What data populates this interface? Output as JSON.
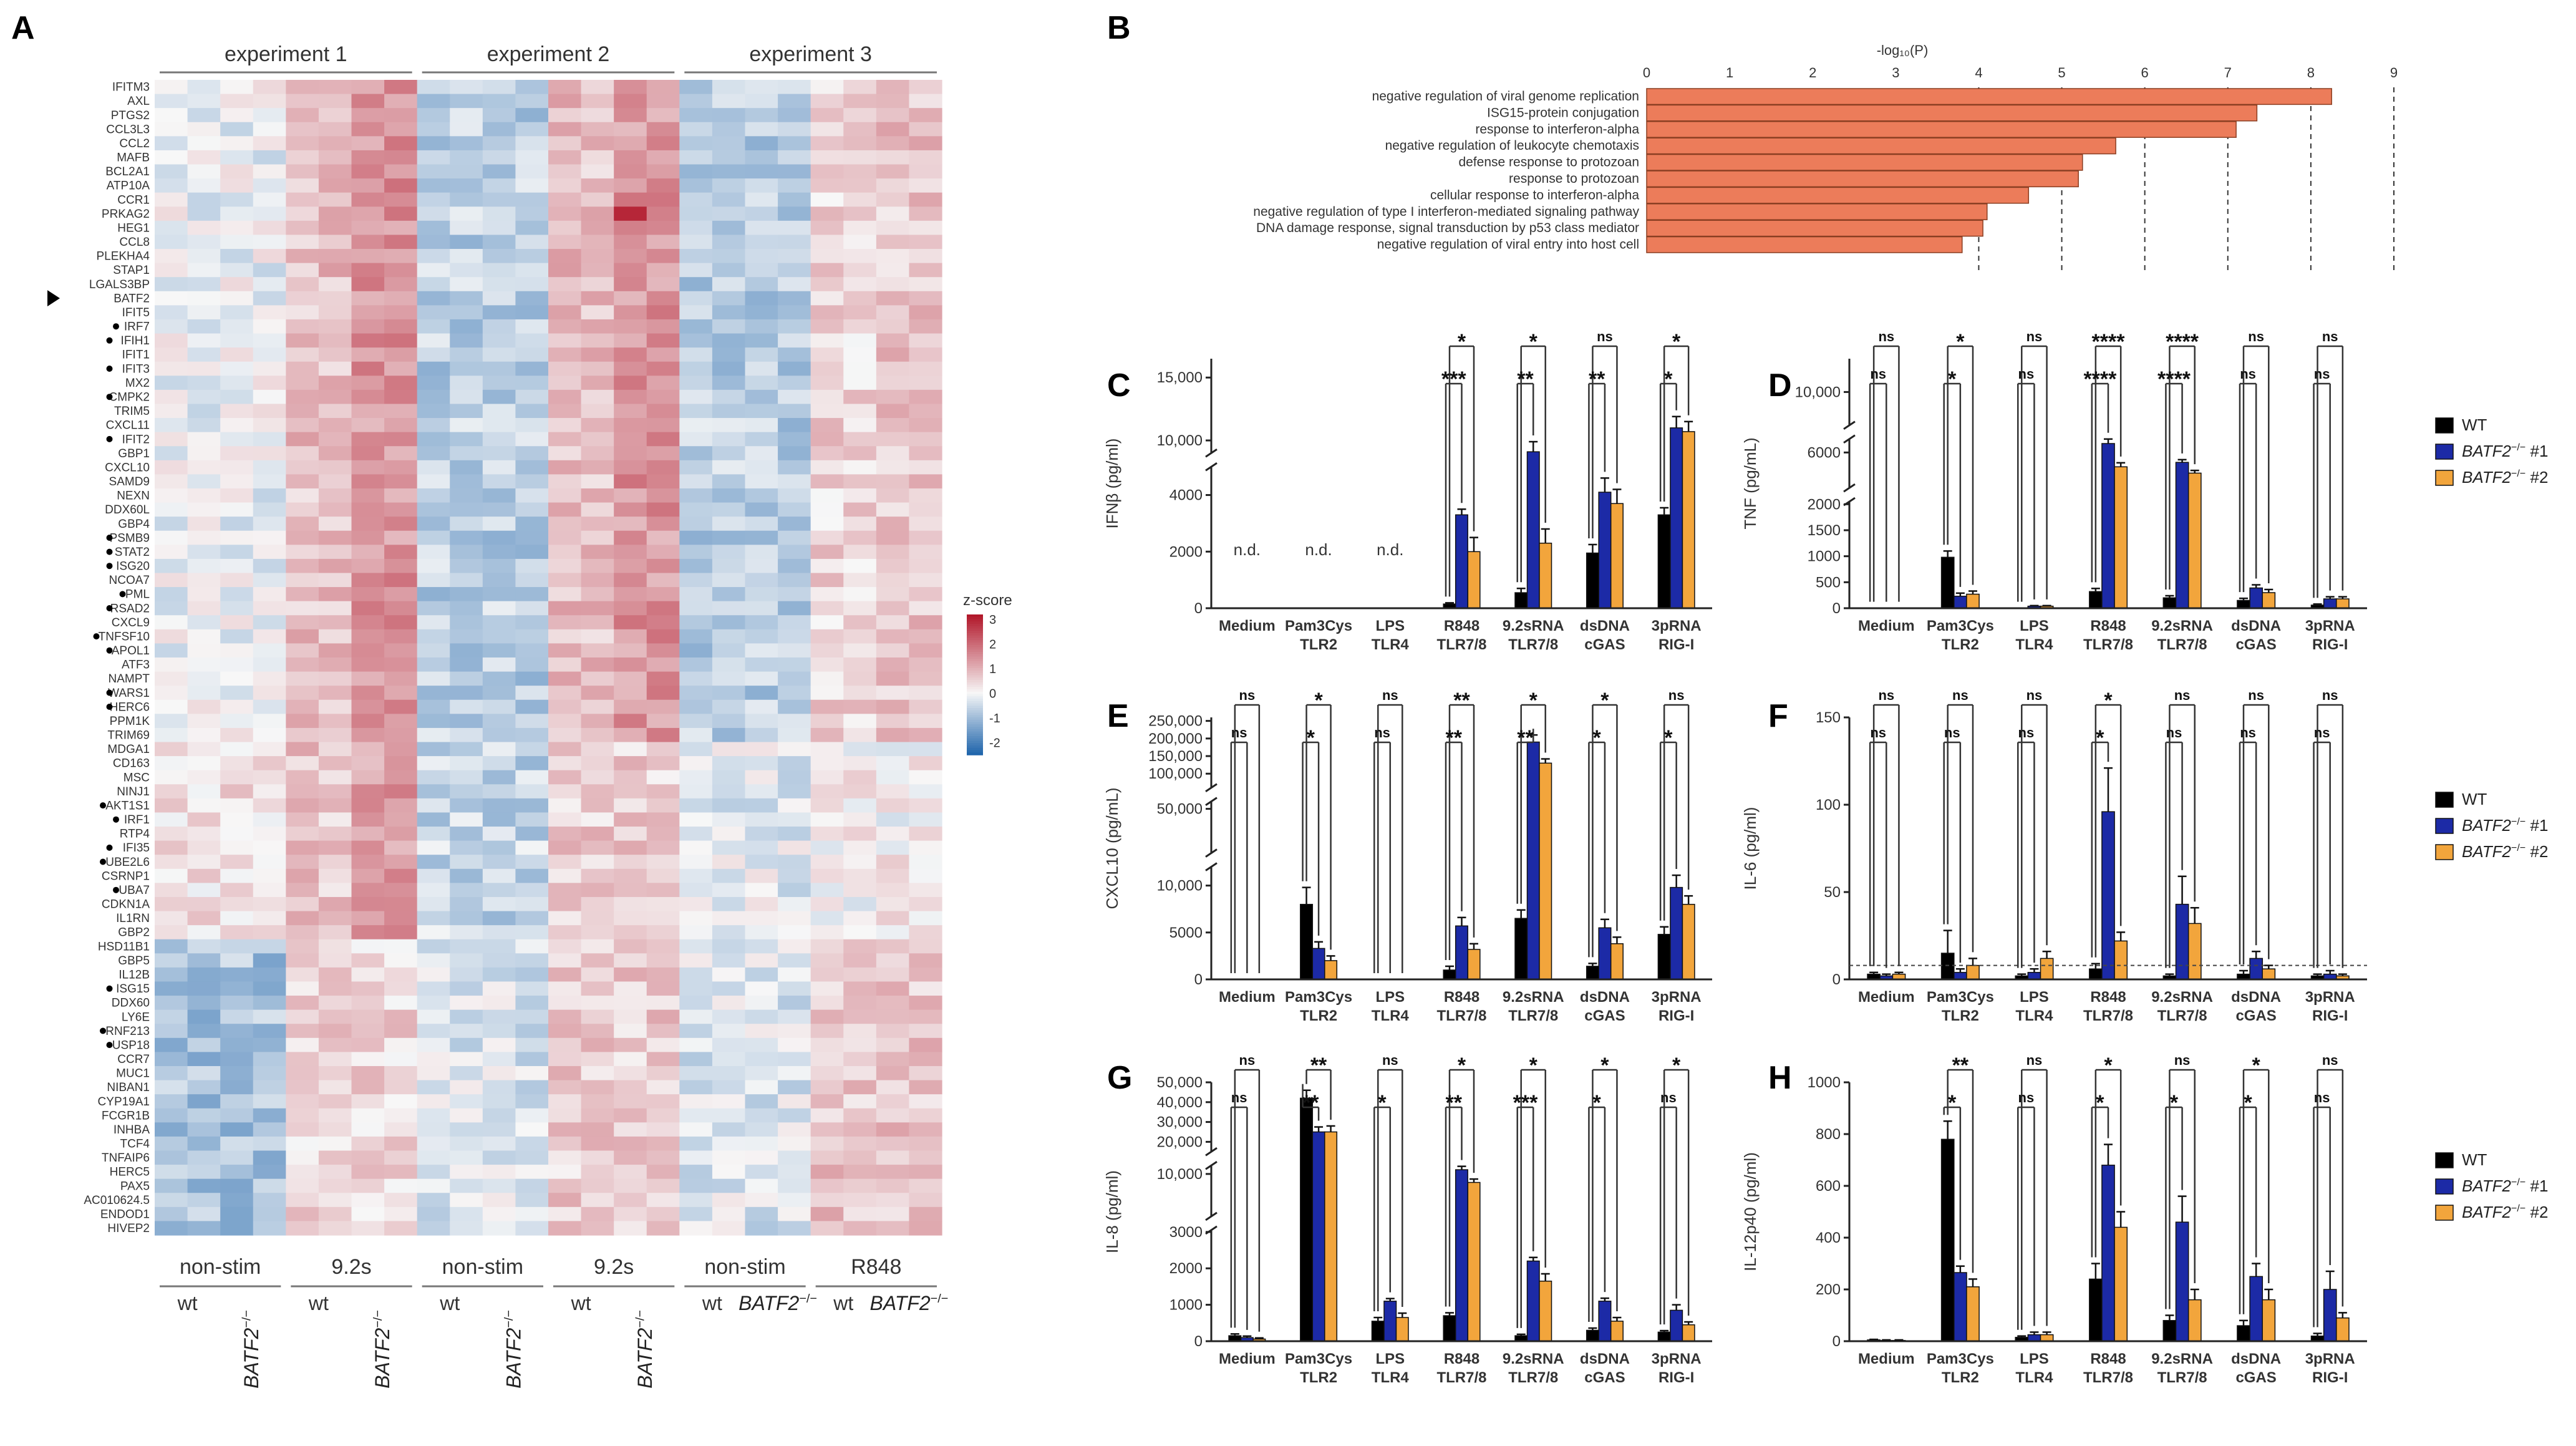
{
  "colors": {
    "wt": "#000000",
    "ko1": "#1c2aa6",
    "ko2": "#f2a53c",
    "go_bar": "#ec7c5a",
    "heat_low": "#2166ac",
    "heat_mid": "#f7f7f7",
    "heat_high": "#b2182b"
  },
  "chart_data": [
    {
      "panel": "A",
      "type": "heatmap",
      "experiments": [
        "experiment 1",
        "experiment 2",
        "experiment 3"
      ],
      "conditions": [
        {
          "stim": "non-stim",
          "genotypes": [
            "wt",
            "BATF2⁻/⁻"
          ]
        },
        {
          "stim": "9.2s",
          "genotypes": [
            "wt",
            "BATF2⁻/⁻"
          ]
        },
        {
          "stim": "non-stim",
          "genotypes": [
            "wt",
            "BATF2⁻/⁻"
          ]
        },
        {
          "stim": "9.2s",
          "genotypes": [
            "wt",
            "BATF2⁻/⁻"
          ]
        },
        {
          "stim": "non-stim",
          "genotypes": [
            "wt",
            "BATF2⁻/⁻"
          ]
        },
        {
          "stim": "R848",
          "genotypes": [
            "wt",
            "BATF2⁻/⁻"
          ]
        }
      ],
      "genes": [
        "IFITM3",
        "AXL",
        "PTGS2",
        "CCL3L3",
        "CCL2",
        "MAFB",
        "BCL2A1",
        "ATP10A",
        "CCR1",
        "PRKAG2",
        "HEG1",
        "CCL8",
        "PLEKHA4",
        "STAP1",
        "LGALS3BP",
        "BATF2",
        "IFIT5",
        "IRF7",
        "IFIH1",
        "IFIT1",
        "IFIT3",
        "MX2",
        "CMPK2",
        "TRIM5",
        "CXCL11",
        "IFIT2",
        "GBP1",
        "CXCL10",
        "SAMD9",
        "NEXN",
        "DDX60L",
        "GBP4",
        "PSMB9",
        "STAT2",
        "ISG20",
        "NCOA7",
        "PML",
        "RSAD2",
        "CXCL9",
        "TNFSF10",
        "APOL1",
        "ATF3",
        "NAMPT",
        "WARS1",
        "HERC6",
        "PPM1K",
        "TRIM69",
        "MDGA1",
        "CD163",
        "MSC",
        "NINJ1",
        "AKT1S1",
        "IRF1",
        "RTP4",
        "IFI35",
        "UBE2L6",
        "CSRNP1",
        "UBA7",
        "CDKN1A",
        "IL1RN",
        "GBP2",
        "HSD11B1",
        "GBP5",
        "IL12B",
        "ISG15",
        "DDX60",
        "LY6E",
        "RNF213",
        "USP18",
        "CCR7",
        "MUC1",
        "NIBAN1",
        "CYP19A1",
        "FCGR1B",
        "INHBA",
        "TCF4",
        "TNFAIP6",
        "HERC5",
        "PAX5",
        "AC010624.5",
        "ENDOD1",
        "HIVEP2"
      ],
      "dotted_genes": [
        "IRF7",
        "IFIH1",
        "IFIT3",
        "CMPK2",
        "IFIT2",
        "PSMB9",
        "STAT2",
        "ISG20",
        "PML",
        "RSAD2",
        "TNFSF10",
        "APOL1",
        "WARS1",
        "HERC6",
        "AKT1S1",
        "IRF1",
        "IFI35",
        "UBE2L6",
        "UBA7",
        "ISG15",
        "RNF213",
        "USP18"
      ],
      "arrow_gene": "BATF2",
      "scale": {
        "title": "z-score",
        "ticks": [
          3,
          2,
          1,
          0,
          -1,
          -2
        ],
        "tick_labels": [
          "3",
          "2",
          "1",
          "0",
          "-1",
          "-2"
        ],
        "range": [
          -2.5,
          3.2
        ]
      }
    },
    {
      "panel": "B",
      "type": "bar",
      "orientation": "horizontal",
      "xlabel": "-log₁₀(P)",
      "xticks": [
        0,
        1,
        2,
        3,
        4,
        5,
        6,
        7,
        8,
        9
      ],
      "xlim": [
        0,
        9
      ],
      "refs": [
        4,
        5,
        6,
        7,
        8,
        9
      ],
      "categories": [
        "negative regulation of viral genome replication",
        "ISG15-protein conjugation",
        "response to interferon-alpha",
        "negative regulation of leukocyte chemotaxis",
        "defense response to protozoan",
        "response to protozoan",
        "cellular response to interferon-alpha",
        "negative regulation of type I interferon-mediated signaling pathway",
        "DNA damage response, signal transduction by p53 class mediator",
        "negative regulation of viral entry into host cell"
      ],
      "values": [
        8.25,
        7.35,
        7.1,
        5.65,
        5.25,
        5.2,
        4.6,
        4.1,
        4.05,
        3.8
      ]
    },
    {
      "panel": "C",
      "type": "bar",
      "ylabel": "IFNβ (pg/ml)",
      "segments": [
        {
          "range": [
            0,
            5000
          ],
          "ticks": [
            0,
            2000,
            4000
          ],
          "tick_labels": [
            "0",
            "2000",
            "4000"
          ]
        },
        {
          "range": [
            9000,
            16500
          ],
          "ticks": [
            10000,
            15000
          ],
          "tick_labels": [
            "10,000",
            "15,000"
          ]
        }
      ],
      "categories": [
        "Medium",
        "Pam3Cys",
        "LPS",
        "R848",
        "9.2sRNA",
        "dsDNA",
        "3pRNA"
      ],
      "sublabels": [
        "",
        "TLR2",
        "TLR4",
        "TLR7/8",
        "TLR7/8",
        "cGAS",
        "RIG-I"
      ],
      "nd_labels": [
        "n.d.",
        "n.d.",
        "n.d."
      ],
      "series": [
        {
          "name": "WT",
          "values": [
            0,
            0,
            0,
            150,
            550,
            1950,
            3300
          ],
          "errors": [
            0,
            0,
            0,
            40,
            150,
            300,
            250
          ]
        },
        {
          "name": "BATF2⁻/⁻ #1",
          "values": [
            0,
            0,
            0,
            3300,
            9100,
            4100,
            11000
          ],
          "errors": [
            0,
            0,
            0,
            200,
            800,
            500,
            900
          ]
        },
        {
          "name": "BATF2⁻/⁻ #2",
          "values": [
            0,
            0,
            0,
            2000,
            2300,
            3700,
            10700
          ],
          "errors": [
            0,
            0,
            0,
            500,
            500,
            500,
            800
          ]
        }
      ],
      "sig_outer": [
        "",
        "",
        "",
        "*",
        "*",
        "ns",
        "*"
      ],
      "sig_inner": [
        "",
        "",
        "",
        "***",
        "**",
        "**",
        "*"
      ]
    },
    {
      "panel": "D",
      "type": "bar",
      "ylabel": "TNF (pg/mL)",
      "segments": [
        {
          "range": [
            0,
            2050
          ],
          "ticks": [
            0,
            500,
            1000,
            1500,
            2000
          ],
          "tick_labels": [
            "0",
            "500",
            "1000",
            "1500",
            "2000"
          ]
        },
        {
          "range": [
            2050,
            7500
          ],
          "ticks": [
            6000
          ],
          "tick_labels": [
            "6000"
          ]
        },
        {
          "range": [
            9000,
            11000
          ],
          "ticks": [
            10000
          ],
          "tick_labels": [
            "10,000"
          ]
        }
      ],
      "categories": [
        "Medium",
        "Pam3Cys",
        "LPS",
        "R848",
        "9.2sRNA",
        "dsDNA",
        "3pRNA"
      ],
      "sublabels": [
        "",
        "TLR2",
        "TLR4",
        "TLR7/8",
        "TLR7/8",
        "cGAS",
        "RIG-I"
      ],
      "series": [
        {
          "name": "WT",
          "values": [
            5,
            980,
            5,
            320,
            200,
            150,
            60
          ],
          "errors": [
            0,
            120,
            0,
            60,
            40,
            40,
            20
          ]
        },
        {
          "name": "BATF2⁻/⁻ #1",
          "values": [
            5,
            230,
            40,
            7000,
            4900,
            390,
            180
          ],
          "errors": [
            0,
            60,
            10,
            600,
            300,
            60,
            40
          ]
        },
        {
          "name": "BATF2⁻/⁻ #2",
          "values": [
            5,
            270,
            40,
            4400,
            3700,
            300,
            180
          ],
          "errors": [
            0,
            60,
            10,
            450,
            300,
            60,
            40
          ]
        }
      ],
      "sig_outer": [
        "ns",
        "*",
        "ns",
        "****",
        "****",
        "ns",
        "ns"
      ],
      "sig_inner": [
        "ns",
        "*",
        "ns",
        "****",
        "****",
        "ns",
        "ns"
      ]
    },
    {
      "panel": "E",
      "type": "bar",
      "ylabel": "CXCL10 (pg/mL)",
      "segments": [
        {
          "range": [
            0,
            12000
          ],
          "ticks": [
            0,
            5000,
            10000
          ],
          "tick_labels": [
            "0",
            "5000",
            "10,000"
          ]
        },
        {
          "range": [
            20000,
            55000
          ],
          "ticks": [
            50000
          ],
          "tick_labels": [
            "50,000"
          ]
        },
        {
          "range": [
            60000,
            260000
          ],
          "ticks": [
            100000,
            150000,
            200000,
            250000
          ],
          "tick_labels": [
            "100,000",
            "150,000",
            "200,000",
            "250,000"
          ]
        }
      ],
      "categories": [
        "Medium",
        "Pam3Cys",
        "LPS",
        "R848",
        "9.2sRNA",
        "dsDNA",
        "3pRNA"
      ],
      "sublabels": [
        "",
        "TLR2",
        "TLR4",
        "TLR7/8",
        "TLR7/8",
        "cGAS",
        "RIG-I"
      ],
      "series": [
        {
          "name": "WT",
          "values": [
            0,
            8000,
            0,
            1000,
            6500,
            1400,
            4800
          ],
          "errors": [
            0,
            1800,
            0,
            400,
            900,
            300,
            800
          ]
        },
        {
          "name": "BATF2⁻/⁻ #1",
          "values": [
            0,
            3300,
            0,
            5700,
            190000,
            5500,
            9800
          ],
          "errors": [
            0,
            700,
            0,
            900,
            20000,
            900,
            1300
          ]
        },
        {
          "name": "BATF2⁻/⁻ #2",
          "values": [
            0,
            2000,
            0,
            3200,
            130000,
            3800,
            8000
          ],
          "errors": [
            0,
            500,
            0,
            600,
            12000,
            700,
            900
          ]
        }
      ],
      "sig_outer": [
        "ns",
        "*",
        "ns",
        "**",
        "*",
        "*",
        "ns"
      ],
      "sig_inner": [
        "ns",
        "*",
        "ns",
        "**",
        "**",
        "*",
        "*"
      ]
    },
    {
      "panel": "F",
      "type": "bar",
      "ylabel": "IL-6 (pg/ml)",
      "segments": [
        {
          "range": [
            0,
            150
          ],
          "ticks": [
            0,
            50,
            100,
            150
          ],
          "tick_labels": [
            "0",
            "50",
            "100",
            "150"
          ]
        }
      ],
      "threshold": 8,
      "categories": [
        "Medium",
        "Pam3Cys",
        "LPS",
        "R848",
        "9.2sRNA",
        "dsDNA",
        "3pRNA"
      ],
      "sublabels": [
        "",
        "TLR2",
        "TLR4",
        "TLR7/8",
        "TLR7/8",
        "cGAS",
        "RIG-I"
      ],
      "series": [
        {
          "name": "WT",
          "values": [
            3,
            15,
            2,
            6,
            2,
            3,
            2
          ],
          "errors": [
            1,
            13,
            1,
            3,
            1,
            2,
            1
          ]
        },
        {
          "name": "BATF2⁻/⁻ #1",
          "values": [
            2,
            4,
            4,
            96,
            43,
            12,
            3
          ],
          "errors": [
            1,
            2,
            2,
            25,
            16,
            4,
            2
          ]
        },
        {
          "name": "BATF2⁻/⁻ #2",
          "values": [
            3,
            8,
            12,
            22,
            32,
            6,
            2
          ],
          "errors": [
            1,
            4,
            4,
            5,
            9,
            2,
            1
          ]
        }
      ],
      "sig_outer": [
        "ns",
        "ns",
        "ns",
        "*",
        "ns",
        "ns",
        "ns"
      ],
      "sig_inner": [
        "ns",
        "ns",
        "ns",
        "*",
        "ns",
        "ns",
        "ns"
      ],
      "legend": [
        "WT",
        "BATF2⁻/⁻ #1",
        "BATF2⁻/⁻ #2"
      ]
    },
    {
      "panel": "G",
      "type": "bar",
      "ylabel": "IL-8 (pg/ml)",
      "segments": [
        {
          "range": [
            0,
            3050
          ],
          "ticks": [
            0,
            1000,
            2000,
            3000
          ],
          "tick_labels": [
            "0",
            "1000",
            "2000",
            "3000"
          ]
        },
        {
          "range": [
            5000,
            11000
          ],
          "ticks": [
            10000
          ],
          "tick_labels": [
            "10,000"
          ]
        },
        {
          "range": [
            15000,
            50000
          ],
          "ticks": [
            20000,
            30000,
            40000,
            50000
          ],
          "tick_labels": [
            "20,000",
            "30,000",
            "40,000",
            "50,000"
          ]
        }
      ],
      "categories": [
        "Medium",
        "Pam3Cys",
        "LPS",
        "R848",
        "9.2sRNA",
        "dsDNA",
        "3pRNA"
      ],
      "sublabels": [
        "",
        "TLR2",
        "TLR4",
        "TLR7/8",
        "TLR7/8",
        "cGAS",
        "RIG-I"
      ],
      "series": [
        {
          "name": "WT",
          "values": [
            150,
            42000,
            550,
            700,
            150,
            300,
            250
          ],
          "errors": [
            50,
            4000,
            100,
            80,
            40,
            60,
            40
          ]
        },
        {
          "name": "BATF2⁻/⁻ #1",
          "values": [
            100,
            25000,
            1100,
            10500,
            2200,
            1100,
            850
          ],
          "errors": [
            40,
            2500,
            70,
            400,
            100,
            80,
            150
          ]
        },
        {
          "name": "BATF2⁻/⁻ #2",
          "values": [
            60,
            25000,
            650,
            9000,
            1650,
            550,
            450
          ],
          "errors": [
            30,
            3000,
            120,
            400,
            200,
            100,
            80
          ]
        }
      ],
      "sig_outer": [
        "ns",
        "**",
        "ns",
        "*",
        "*",
        "*",
        "*"
      ],
      "sig_inner": [
        "ns",
        "**",
        "*",
        "**",
        "***",
        "*",
        "ns"
      ]
    },
    {
      "panel": "H",
      "type": "bar",
      "ylabel": "IL-12p40 (pg/ml)",
      "segments": [
        {
          "range": [
            0,
            1000
          ],
          "ticks": [
            0,
            200,
            400,
            600,
            800,
            1000
          ],
          "tick_labels": [
            "0",
            "200",
            "400",
            "600",
            "800",
            "1000"
          ]
        }
      ],
      "categories": [
        "Medium",
        "Pam3Cys",
        "LPS",
        "R848",
        "9.2sRNA",
        "dsDNA",
        "3pRNA"
      ],
      "sublabels": [
        "",
        "TLR2",
        "TLR4",
        "TLR7/8",
        "TLR7/8",
        "cGAS",
        "RIG-I"
      ],
      "series": [
        {
          "name": "WT",
          "values": [
            5,
            780,
            15,
            240,
            80,
            60,
            20
          ],
          "errors": [
            2,
            70,
            5,
            60,
            20,
            20,
            10
          ]
        },
        {
          "name": "BATF2⁻/⁻ #1",
          "values": [
            3,
            265,
            25,
            680,
            460,
            250,
            200
          ],
          "errors": [
            2,
            25,
            10,
            80,
            100,
            50,
            70
          ]
        },
        {
          "name": "BATF2⁻/⁻ #2",
          "values": [
            3,
            210,
            25,
            440,
            160,
            160,
            90
          ],
          "errors": [
            2,
            30,
            10,
            60,
            40,
            40,
            20
          ]
        }
      ],
      "sig_outer": [
        "",
        "**",
        "ns",
        "*",
        "ns",
        "*",
        "ns"
      ],
      "sig_inner": [
        "",
        "*",
        "ns",
        "*",
        "*",
        "*",
        "ns"
      ],
      "legend": [
        "WT",
        "BATF2⁻/⁻ #1",
        "BATF2⁻/⁻ #2"
      ]
    }
  ],
  "panel_letters": [
    "A",
    "B",
    "C",
    "D",
    "E",
    "F",
    "G",
    "H"
  ]
}
